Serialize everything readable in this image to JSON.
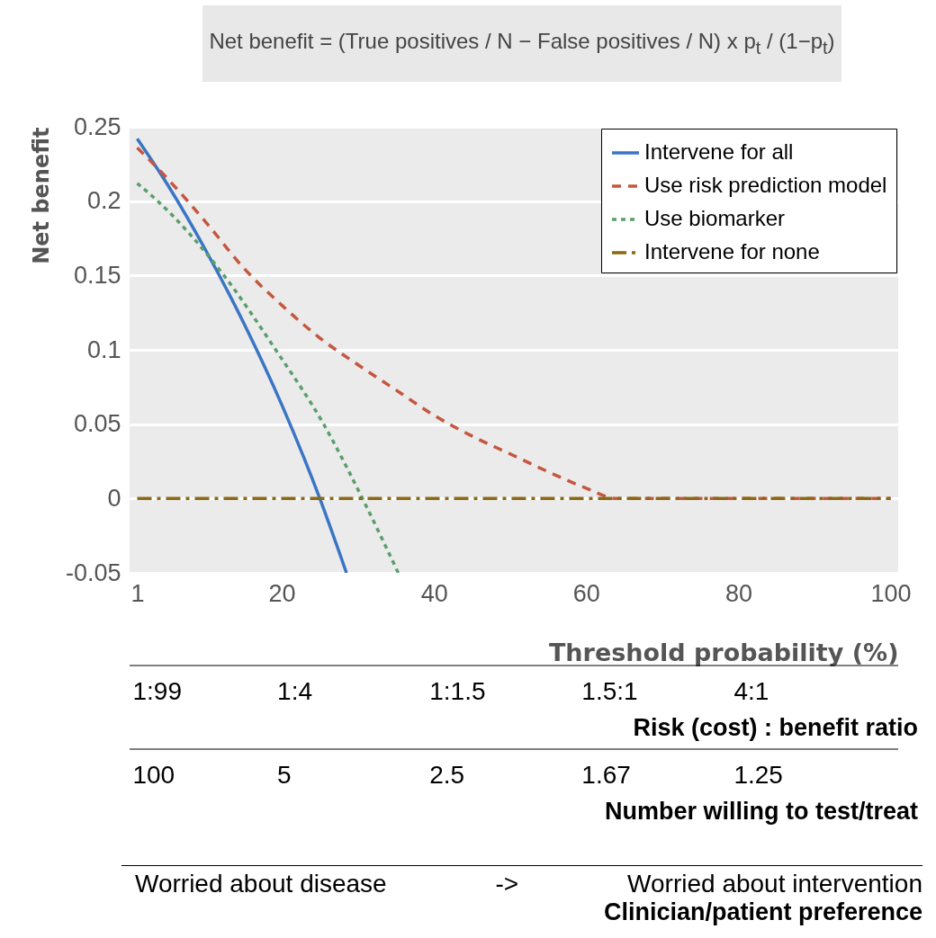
{
  "chart_data": {
    "type": "line",
    "title": "Net benefit = (True positives / N − False positives / N) x p$_{t}$ / (1−p$_{t}$)",
    "xlabel": "Threshold probability (%)",
    "ylabel": "Net benefit",
    "xlim": [
      0,
      101
    ],
    "xticks": [
      1,
      20,
      40,
      60,
      80,
      100
    ],
    "ylim": [
      -0.05,
      0.25
    ],
    "yticks": [
      -0.05,
      0,
      0.05,
      0.1,
      0.15,
      0.2,
      0.25
    ],
    "annotations": [
      "1:99",
      "1:4",
      "1:1.5",
      "1.5:1",
      "4:1",
      "Risk (cost) : benefit ratio",
      "100",
      "5",
      "2.5",
      "1.67",
      "1.25",
      "Number willing to test/treat",
      "Worried about disease",
      "->",
      "Worried about intervention",
      "Clinician/patient preference"
    ],
    "grid": "y",
    "legend": "top right",
    "series": [
      {
        "name": "Intervene for all",
        "color": "#3a75c4",
        "line_style": "solid",
        "x": [
          1,
          5,
          10,
          15,
          20,
          25,
          28.5
        ],
        "values": [
          0.242,
          0.211,
          0.167,
          0.118,
          0.063,
          0.0,
          -0.05
        ]
      },
      {
        "name": "Use risk prediction model",
        "color": "#c5573e",
        "line_style": "dashed",
        "x": [
          1,
          5,
          10,
          15,
          20,
          25,
          30,
          35,
          40,
          45,
          50,
          55,
          60,
          64,
          100
        ],
        "values": [
          0.236,
          0.215,
          0.186,
          0.155,
          0.13,
          0.108,
          0.09,
          0.073,
          0.056,
          0.042,
          0.03,
          0.018,
          0.007,
          0,
          0
        ]
      },
      {
        "name": "Use biomarker",
        "color": "#5a9e6b",
        "line_style": "dotted",
        "x": [
          1,
          3.7,
          12.4,
          19.2,
          25.5,
          30.6,
          35.3
        ],
        "values": [
          0.212,
          0.2,
          0.15,
          0.1,
          0.05,
          0,
          -0.05
        ]
      },
      {
        "name": "Intervene for none",
        "color": "#8b6914",
        "line_style": "dashdot",
        "x": [
          1,
          100
        ],
        "values": [
          0,
          0
        ]
      }
    ]
  }
}
